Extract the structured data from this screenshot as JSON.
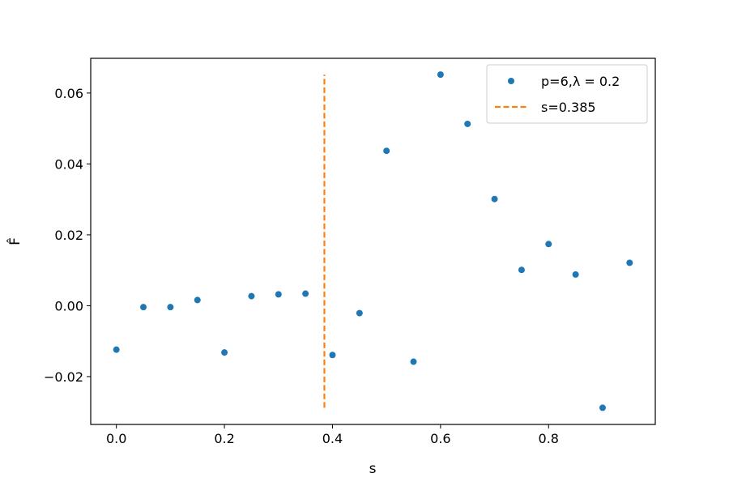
{
  "chart_data": {
    "type": "scatter",
    "xlabel": "s",
    "ylabel": "F̂",
    "xlim": [
      -0.0475,
      0.9975
    ],
    "ylim": [
      -0.0335,
      0.0698
    ],
    "xticks": [
      0.0,
      0.2,
      0.4,
      0.6,
      0.8
    ],
    "xtick_labels": [
      "0.0",
      "0.2",
      "0.4",
      "0.6",
      "0.8"
    ],
    "yticks": [
      -0.02,
      0.0,
      0.02,
      0.04,
      0.06
    ],
    "ytick_labels": [
      "−0.02",
      "0.00",
      "0.02",
      "0.04",
      "0.06"
    ],
    "grid": false,
    "legend_position": "top-right",
    "series": [
      {
        "name": "p=6,λ = 0.2",
        "kind": "scatter",
        "color": "#1f77b4",
        "x": [
          0.0,
          0.05,
          0.1,
          0.15,
          0.2,
          0.25,
          0.3,
          0.35,
          0.4,
          0.45,
          0.5,
          0.55,
          0.6,
          0.65,
          0.7,
          0.75,
          0.8,
          0.85,
          0.9,
          0.95
        ],
        "y": [
          -0.0124,
          -0.0004,
          -0.0004,
          0.0016,
          -0.0132,
          0.0027,
          0.0032,
          0.0034,
          -0.0139,
          -0.0021,
          0.0437,
          -0.0158,
          0.0652,
          0.0513,
          0.0301,
          0.0101,
          0.0174,
          0.0088,
          -0.0288,
          0.0121
        ]
      },
      {
        "name": "s=0.385",
        "kind": "vline",
        "color": "#ff7f0e",
        "x": 0.385,
        "y_range": [
          -0.0288,
          0.0652
        ]
      }
    ]
  }
}
